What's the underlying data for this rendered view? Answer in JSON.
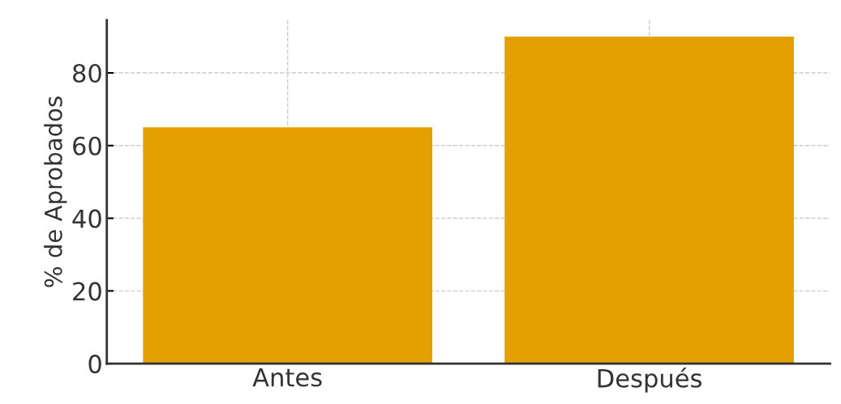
{
  "chart_data": {
    "type": "bar",
    "ylabel": "% de Aprobados",
    "categories": [
      "Antes",
      "Después"
    ],
    "values": [
      65,
      90
    ],
    "color": "#e5a000",
    "ylim": [
      0,
      94.5
    ],
    "yticks": [
      0,
      20,
      40,
      60,
      80
    ],
    "grid": true
  }
}
